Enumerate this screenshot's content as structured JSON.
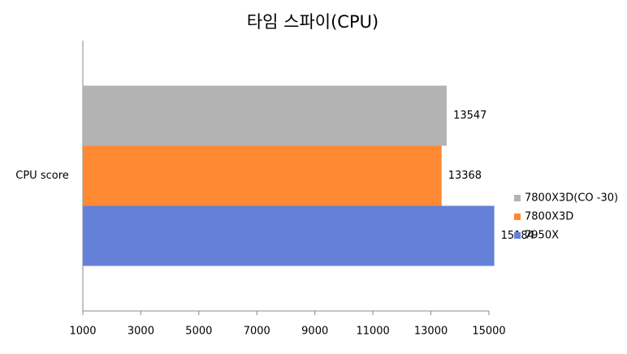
{
  "chart_data": {
    "type": "hbar",
    "title": "타임 스파이(CPU)",
    "categories": [
      "CPU score"
    ],
    "series": [
      {
        "name": "7800X3D(CO -30)",
        "color": "#b3b3b3",
        "values": [
          13547
        ]
      },
      {
        "name": "7800X3D",
        "color": "#ff8833",
        "values": [
          13368
        ]
      },
      {
        "name": "7950X",
        "color": "#6480d8",
        "values": [
          15184
        ]
      }
    ],
    "xlim": [
      1000,
      15000
    ],
    "xticks": [
      1000,
      3000,
      5000,
      7000,
      9000,
      11000,
      13000,
      15000
    ],
    "grid": false,
    "legend": "right"
  }
}
